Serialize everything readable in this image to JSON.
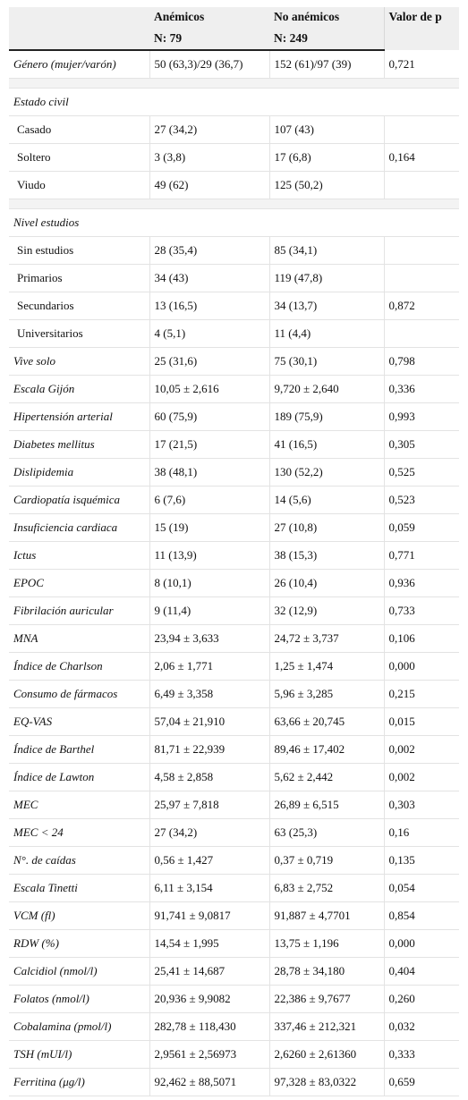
{
  "header": {
    "col2_line1": "Anémicos",
    "col2_line2": "N: 79",
    "col3_line1": "No anémicos",
    "col3_line2": "N: 249",
    "col4_line1": "Valor de p"
  },
  "rows": [
    {
      "kind": "row",
      "label": "Género (mujer/varón)",
      "italic": true,
      "a": "50 (63,3)/29 (36,7)",
      "b": "152 (61)/97 (39)",
      "p": "0,721"
    },
    {
      "kind": "gap"
    },
    {
      "kind": "section",
      "label": "Estado civil"
    },
    {
      "kind": "row",
      "label": "Casado",
      "sub": true,
      "a": "27 (34,2)",
      "b": "107 (43)",
      "p": ""
    },
    {
      "kind": "row",
      "label": "Soltero",
      "sub": true,
      "a": "3 (3,8)",
      "b": "17 (6,8)",
      "p": "0,164"
    },
    {
      "kind": "row",
      "label": "Viudo",
      "sub": true,
      "a": "49 (62)",
      "b": "125 (50,2)",
      "p": ""
    },
    {
      "kind": "gap"
    },
    {
      "kind": "section",
      "label": "Nivel estudios"
    },
    {
      "kind": "row",
      "label": "Sin estudios",
      "sub": true,
      "a": "28 (35,4)",
      "b": "85 (34,1)",
      "p": ""
    },
    {
      "kind": "row",
      "label": "Primarios",
      "sub": true,
      "a": "34 (43)",
      "b": "119 (47,8)",
      "p": ""
    },
    {
      "kind": "row",
      "label": "Secundarios",
      "sub": true,
      "a": "13 (16,5)",
      "b": "34 (13,7)",
      "p": "0,872"
    },
    {
      "kind": "row",
      "label": "Universitarios",
      "sub": true,
      "a": "4 (5,1)",
      "b": "11 (4,4)",
      "p": ""
    },
    {
      "kind": "row",
      "label": "Vive solo",
      "italic": true,
      "a": "25 (31,6)",
      "b": "75 (30,1)",
      "p": "0,798"
    },
    {
      "kind": "row",
      "label": "Escala Gijón",
      "italic": true,
      "a": "10,05 ± 2,616",
      "b": "9,720 ± 2,640",
      "p": "0,336"
    },
    {
      "kind": "row",
      "label": "Hipertensión arterial",
      "italic": true,
      "a": "60 (75,9)",
      "b": "189 (75,9)",
      "p": "0,993"
    },
    {
      "kind": "row",
      "label": "Diabetes mellitus",
      "italic": true,
      "a": "17 (21,5)",
      "b": "41 (16,5)",
      "p": "0,305"
    },
    {
      "kind": "row",
      "label": "Dislipidemia",
      "italic": true,
      "a": "38 (48,1)",
      "b": "130 (52,2)",
      "p": "0,525"
    },
    {
      "kind": "row",
      "label": "Cardiopatía isquémica",
      "italic": true,
      "a": "6 (7,6)",
      "b": "14 (5,6)",
      "p": "0,523"
    },
    {
      "kind": "row",
      "label": "Insuficiencia cardiaca",
      "italic": true,
      "a": "15 (19)",
      "b": "27 (10,8)",
      "p": "0,059"
    },
    {
      "kind": "row",
      "label": "Ictus",
      "italic": true,
      "a": "11 (13,9)",
      "b": "38 (15,3)",
      "p": "0,771"
    },
    {
      "kind": "row",
      "label": "EPOC",
      "italic": true,
      "a": "8 (10,1)",
      "b": "26 (10,4)",
      "p": "0,936"
    },
    {
      "kind": "row",
      "label": "Fibrilación auricular",
      "italic": true,
      "a": "9 (11,4)",
      "b": "32 (12,9)",
      "p": "0,733"
    },
    {
      "kind": "row",
      "label": "MNA",
      "italic": true,
      "a": "23,94 ± 3,633",
      "b": "24,72 ± 3,737",
      "p": "0,106"
    },
    {
      "kind": "row",
      "label": "Índice de Charlson",
      "italic": true,
      "a": "2,06 ± 1,771",
      "b": "1,25 ± 1,474",
      "p": "0,000"
    },
    {
      "kind": "row",
      "label": "Consumo de fármacos",
      "italic": true,
      "a": "6,49 ± 3,358",
      "b": "5,96 ± 3,285",
      "p": "0,215"
    },
    {
      "kind": "row",
      "label": "EQ-VAS",
      "italic": true,
      "a": "57,04 ± 21,910",
      "b": "63,66 ± 20,745",
      "p": "0,015"
    },
    {
      "kind": "row",
      "label": "Índice de Barthel",
      "italic": true,
      "a": "81,71 ± 22,939",
      "b": "89,46 ± 17,402",
      "p": "0,002"
    },
    {
      "kind": "row",
      "label": "Índice de Lawton",
      "italic": true,
      "a": "4,58 ± 2,858",
      "b": "5,62 ± 2,442",
      "p": "0,002"
    },
    {
      "kind": "row",
      "label": "MEC",
      "italic": true,
      "a": "25,97 ± 7,818",
      "b": "26,89 ± 6,515",
      "p": "0,303"
    },
    {
      "kind": "row",
      "label": "MEC < 24",
      "italic": true,
      "a": "27 (34,2)",
      "b": "63 (25,3)",
      "p": "0,16"
    },
    {
      "kind": "row",
      "label": "N°. de caídas",
      "italic": true,
      "a": "0,56 ± 1,427",
      "b": "0,37 ± 0,719",
      "p": "0,135"
    },
    {
      "kind": "row",
      "label": "Escala Tinetti",
      "italic": true,
      "a": "6,11 ± 3,154",
      "b": "6,83 ± 2,752",
      "p": "0,054"
    },
    {
      "kind": "row",
      "label": "VCM (fl)",
      "italic": true,
      "a": "91,741 ± 9,0817",
      "b": "91,887 ± 4,7701",
      "p": "0,854"
    },
    {
      "kind": "row",
      "label": "RDW (%)",
      "italic": true,
      "a": "14,54 ± 1,995",
      "b": "13,75 ± 1,196",
      "p": "0,000"
    },
    {
      "kind": "row",
      "label": "Calcidiol (nmol/l)",
      "italic": true,
      "a": "25,41 ± 14,687",
      "b": "28,78 ± 34,180",
      "p": "0,404"
    },
    {
      "kind": "row",
      "label": "Folatos (nmol/l)",
      "italic": true,
      "a": "20,936 ± 9,9082",
      "b": "22,386 ± 9,7677",
      "p": "0,260"
    },
    {
      "kind": "row",
      "label": "Cobalamina (pmol/l)",
      "italic": true,
      "a": "282,78 ± 118,430",
      "b": "337,46 ± 212,321",
      "p": "0,032"
    },
    {
      "kind": "row",
      "label": "TSH (mUI/l)",
      "italic": true,
      "a": "2,9561 ± 2,56973",
      "b": "2,6260 ± 2,61360",
      "p": "0,333"
    },
    {
      "kind": "row",
      "label": "Ferritina (μg/l)",
      "italic": true,
      "a": "92,462 ± 88,5071",
      "b": "97,328 ± 83,0322",
      "p": "0,659"
    }
  ]
}
